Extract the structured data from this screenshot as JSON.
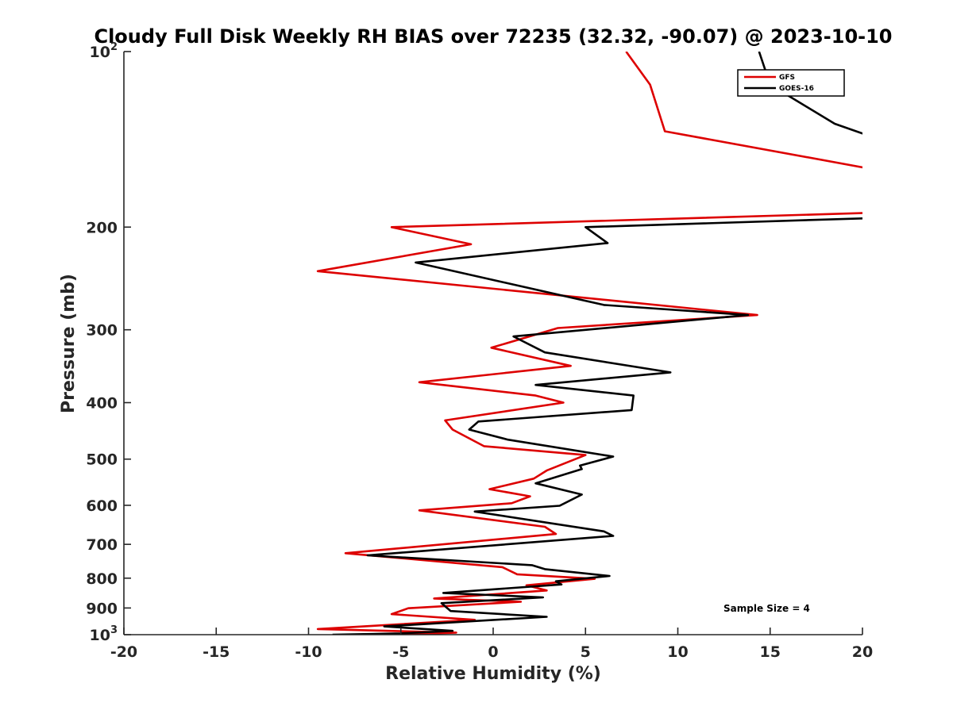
{
  "chart_data": {
    "type": "line",
    "title": "Cloudy Full Disk Weekly RH BIAS over 72235 (32.32, -90.07) @ 2023-10-10",
    "xlabel": "Relative Humidity (%)",
    "ylabel": "Pressure (mb)",
    "xlim": [
      -20,
      20
    ],
    "ylim": [
      100,
      1000
    ],
    "yscale": "log",
    "y_reversed": true,
    "x_ticks": [
      "-20",
      "-15",
      "-10",
      "-5",
      "0",
      "5",
      "10",
      "15",
      "20"
    ],
    "y_ticks": [
      {
        "value": 100,
        "base": "10",
        "exp": "2"
      },
      {
        "value": 200,
        "label": "200"
      },
      {
        "value": 300,
        "label": "300"
      },
      {
        "value": 400,
        "label": "400"
      },
      {
        "value": 500,
        "label": "500"
      },
      {
        "value": 600,
        "label": "600"
      },
      {
        "value": 700,
        "label": "700"
      },
      {
        "value": 800,
        "label": "800"
      },
      {
        "value": 900,
        "label": "900"
      },
      {
        "value": 1000,
        "base": "10",
        "exp": "3"
      }
    ],
    "legend_position": "top-right",
    "annotation": "Sample Size = 4",
    "series": [
      {
        "name": "GFS",
        "color": "#dd0000",
        "points": [
          [
            7.2,
            100
          ],
          [
            8.5,
            114
          ],
          [
            9.3,
            137
          ],
          [
            20.5,
            159
          ],
          [
            20.5,
            189
          ],
          [
            -5.5,
            200
          ],
          [
            -1.2,
            214
          ],
          [
            -9.5,
            238
          ],
          [
            14.3,
            283
          ],
          [
            3.5,
            298
          ],
          [
            -0.1,
            322
          ],
          [
            4.2,
            346
          ],
          [
            -4,
            369
          ],
          [
            2.3,
            389
          ],
          [
            3.8,
            400
          ],
          [
            -2.6,
            429
          ],
          [
            -2.2,
            445
          ],
          [
            -0.5,
            475
          ],
          [
            5.0,
            492
          ],
          [
            2.9,
            523
          ],
          [
            2.2,
            540
          ],
          [
            -0.2,
            563
          ],
          [
            2.0,
            579
          ],
          [
            1.0,
            595
          ],
          [
            -4,
            612
          ],
          [
            2.8,
            653
          ],
          [
            3.4,
            672
          ],
          [
            -8.0,
            725
          ],
          [
            0.5,
            766
          ],
          [
            1.3,
            788
          ],
          [
            5.5,
            802
          ],
          [
            1.8,
            823
          ],
          [
            2.9,
            840
          ],
          [
            -3.2,
            867
          ],
          [
            1.5,
            878
          ],
          [
            -4.6,
            901
          ],
          [
            -5.5,
            922
          ],
          [
            -1,
            943
          ],
          [
            -9.5,
            978
          ],
          [
            -2,
            992
          ],
          [
            -5,
            1000
          ]
        ]
      },
      {
        "name": "GOES-16",
        "color": "#000000",
        "points": [
          [
            14.4,
            100
          ],
          [
            15.0,
            114
          ],
          [
            18.5,
            133
          ],
          [
            20.5,
            140
          ],
          [
            20.5,
            193
          ],
          [
            5.0,
            200
          ],
          [
            6.2,
            213
          ],
          [
            -4.2,
            230
          ],
          [
            6.0,
            272
          ],
          [
            13.8,
            283
          ],
          [
            1.1,
            308
          ],
          [
            2.8,
            328
          ],
          [
            9.6,
            355
          ],
          [
            2.3,
            373
          ],
          [
            7.6,
            389
          ],
          [
            7.5,
            412
          ],
          [
            -0.8,
            431
          ],
          [
            -1.3,
            445
          ],
          [
            0.8,
            463
          ],
          [
            6.5,
            495
          ],
          [
            4.7,
            513
          ],
          [
            4.8,
            520
          ],
          [
            2.3,
            550
          ],
          [
            4.8,
            575
          ],
          [
            3.6,
            601
          ],
          [
            -1,
            615
          ],
          [
            6,
            665
          ],
          [
            6.5,
            677
          ],
          [
            -6.8,
            731
          ],
          [
            2.1,
            760
          ],
          [
            2.8,
            772
          ],
          [
            6.3,
            793
          ],
          [
            3.4,
            810
          ],
          [
            3.7,
            820
          ],
          [
            -2.7,
            848
          ],
          [
            2.7,
            863
          ],
          [
            -2.8,
            883
          ],
          [
            -2.3,
            911
          ],
          [
            2.9,
            932
          ],
          [
            -5.9,
            968
          ],
          [
            -2.2,
            985
          ],
          [
            -5,
            995
          ],
          [
            -8.7,
            1000
          ]
        ]
      }
    ]
  }
}
